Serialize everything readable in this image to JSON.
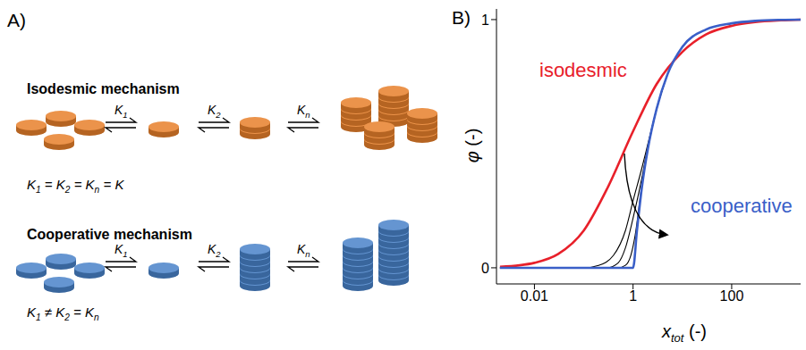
{
  "diagram": {
    "panel_labels": [
      "A)",
      "B)"
    ],
    "rows": [
      {
        "title": "Isodesmic mechanism",
        "color": "#e8812c",
        "equilibria": [
          {
            "t": "K",
            "sub": "1"
          },
          {
            "t": "K",
            "sub": "2"
          },
          {
            "t": "K",
            "sub": "n"
          }
        ],
        "relation": [
          {
            "t": "K",
            "sub": "1"
          },
          {
            "t": " = "
          },
          {
            "t": "K",
            "sub": "2"
          },
          {
            "t": " = "
          },
          {
            "t": "K",
            "sub": "n"
          },
          {
            "t": " = K"
          }
        ]
      },
      {
        "title": "Cooperative mechanism",
        "color": "#4a83c9",
        "equilibria": [
          {
            "t": "K",
            "sub": "1"
          },
          {
            "t": "K",
            "sub": "2"
          },
          {
            "t": "K",
            "sub": "n"
          }
        ],
        "relation": [
          {
            "t": "K",
            "sub": "1"
          },
          {
            "t": " ≠ "
          },
          {
            "t": "K",
            "sub": "2"
          },
          {
            "t": " = "
          },
          {
            "t": "K",
            "sub": "n"
          }
        ]
      }
    ]
  },
  "chart_data": {
    "type": "line",
    "log": "x",
    "grid": false,
    "xlabel": [
      {
        "t": "x",
        "sub": "tot"
      },
      {
        "t": " (-)"
      }
    ],
    "ylabel": [
      {
        "t": "φ"
      },
      {
        "t": " (-)"
      }
    ],
    "xlim": [
      0.0017,
      2500
    ],
    "xticks": [
      0.01,
      1,
      100
    ],
    "ylim": [
      -0.065,
      1.043
    ],
    "yticks": [
      0,
      1
    ],
    "series": [
      {
        "name": "isodesmic",
        "color": "#e8202a",
        "x": [
          0.002,
          0.005,
          0.01,
          0.03,
          0.1,
          0.3,
          1,
          3,
          10,
          30,
          100,
          300,
          1000,
          2500
        ],
        "values": [
          0.004,
          0.01,
          0.02,
          0.055,
          0.15,
          0.32,
          0.55,
          0.74,
          0.87,
          0.94,
          0.975,
          0.99,
          0.997,
          1.0
        ]
      },
      {
        "color": "#000000",
        "x": [
          0.002,
          0.1,
          0.2,
          0.4,
          0.7,
          1,
          1.5,
          2,
          3,
          5
        ],
        "values": [
          0,
          0,
          0.01,
          0.05,
          0.15,
          0.27,
          0.4,
          0.5,
          0.64,
          0.78
        ]
      },
      {
        "color": "#000000",
        "x": [
          0.002,
          0.3,
          0.5,
          0.7,
          1,
          1.5,
          2,
          3,
          5
        ],
        "values": [
          0,
          0,
          0.02,
          0.08,
          0.2,
          0.36,
          0.49,
          0.64,
          0.78
        ]
      },
      {
        "color": "#000000",
        "x": [
          0.002,
          0.5,
          0.7,
          0.9,
          1.1,
          1.5,
          2,
          3,
          5
        ],
        "values": [
          0,
          0,
          0.01,
          0.05,
          0.13,
          0.33,
          0.48,
          0.64,
          0.78
        ]
      },
      {
        "name": "cooperative",
        "color": "#3a5fc8",
        "x": [
          0.002,
          0.1,
          0.5,
          0.9,
          1,
          1.2,
          1.5,
          2,
          3,
          5,
          10,
          30,
          100,
          300,
          1000,
          2500
        ],
        "values": [
          0,
          0,
          0,
          0,
          0,
          0.15,
          0.32,
          0.48,
          0.64,
          0.78,
          0.89,
          0.96,
          0.985,
          0.995,
          0.999,
          1.0
        ]
      }
    ]
  }
}
